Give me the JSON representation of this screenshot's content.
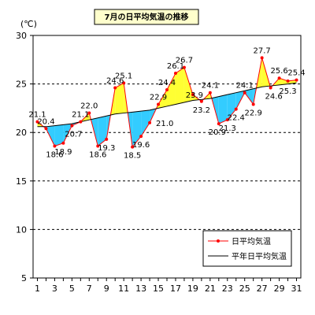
{
  "chart_data": {
    "type": "line",
    "title": "7月の日平均気温の推移",
    "unit_label": "(℃)",
    "ylim": [
      5,
      30
    ],
    "y_ticks": [
      5,
      10,
      15,
      20,
      25,
      30
    ],
    "x_ticks": [
      1,
      3,
      5,
      7,
      9,
      11,
      13,
      15,
      17,
      19,
      21,
      23,
      25,
      27,
      29,
      31
    ],
    "grid": "horizontal dashed",
    "legend_position": "bottom-right",
    "fill_above_color": "#ffff33",
    "fill_below_color": "#33ccff",
    "series": [
      {
        "name": "日平均気温",
        "color": "#ff0000",
        "x": [
          1,
          2,
          3,
          4,
          5,
          6,
          7,
          8,
          9,
          10,
          11,
          12,
          13,
          14,
          15,
          16,
          17,
          18,
          19,
          20,
          21,
          22,
          23,
          24,
          25,
          26,
          27,
          28,
          29,
          30,
          31
        ],
        "values": [
          21.1,
          20.4,
          18.6,
          18.9,
          20.7,
          21.1,
          22.0,
          18.6,
          19.3,
          24.6,
          25.1,
          18.5,
          19.6,
          21.0,
          22.9,
          24.4,
          26.1,
          26.7,
          23.9,
          23.2,
          24.1,
          20.9,
          21.3,
          22.4,
          24.1,
          22.9,
          27.7,
          24.6,
          25.6,
          25.3,
          25.4
        ]
      },
      {
        "name": "平年日平均気温",
        "color": "#000000",
        "x": [
          1,
          2,
          3,
          4,
          5,
          6,
          7,
          8,
          9,
          10,
          11,
          12,
          13,
          14,
          15,
          16,
          17,
          18,
          19,
          20,
          21,
          22,
          23,
          24,
          25,
          26,
          27,
          28,
          29,
          30,
          31
        ],
        "values": [
          20.6,
          20.6,
          20.7,
          20.8,
          20.9,
          21.1,
          21.3,
          21.5,
          21.7,
          21.9,
          22.0,
          22.1,
          22.2,
          22.3,
          22.5,
          22.7,
          22.9,
          23.1,
          23.3,
          23.4,
          23.5,
          23.7,
          23.9,
          24.1,
          24.3,
          24.5,
          24.7,
          24.8,
          24.9,
          25.0,
          25.1
        ]
      }
    ],
    "data_labels": [
      {
        "x": 1,
        "text": "21.1"
      },
      {
        "x": 2,
        "text": "20.4"
      },
      {
        "x": 3,
        "text": "18.6"
      },
      {
        "x": 4,
        "text": "18.9"
      },
      {
        "x": 5,
        "text": "20.7"
      },
      {
        "x": 6,
        "text": "21.1"
      },
      {
        "x": 7,
        "text": "22.0"
      },
      {
        "x": 8,
        "text": "18.6"
      },
      {
        "x": 9,
        "text": "19.3"
      },
      {
        "x": 10,
        "text": "24.6"
      },
      {
        "x": 11,
        "text": "25.1"
      },
      {
        "x": 12,
        "text": "18.5"
      },
      {
        "x": 13,
        "text": "19.6"
      },
      {
        "x": 14,
        "text": "21.0"
      },
      {
        "x": 15,
        "text": "22.9"
      },
      {
        "x": 16,
        "text": "24.4"
      },
      {
        "x": 17,
        "text": "26.1"
      },
      {
        "x": 18,
        "text": "26.7"
      },
      {
        "x": 19,
        "text": "23.9"
      },
      {
        "x": 20,
        "text": "23.2"
      },
      {
        "x": 21,
        "text": "24.1"
      },
      {
        "x": 22,
        "text": "20.9"
      },
      {
        "x": 23,
        "text": "21.3"
      },
      {
        "x": 24,
        "text": "22.4"
      },
      {
        "x": 25,
        "text": "24.1"
      },
      {
        "x": 26,
        "text": "22.9"
      },
      {
        "x": 27,
        "text": "27.7"
      },
      {
        "x": 28,
        "text": "24.6"
      },
      {
        "x": 29,
        "text": "25.6"
      },
      {
        "x": 30,
        "text": "25.3"
      },
      {
        "x": 31,
        "text": "25.4"
      }
    ]
  }
}
